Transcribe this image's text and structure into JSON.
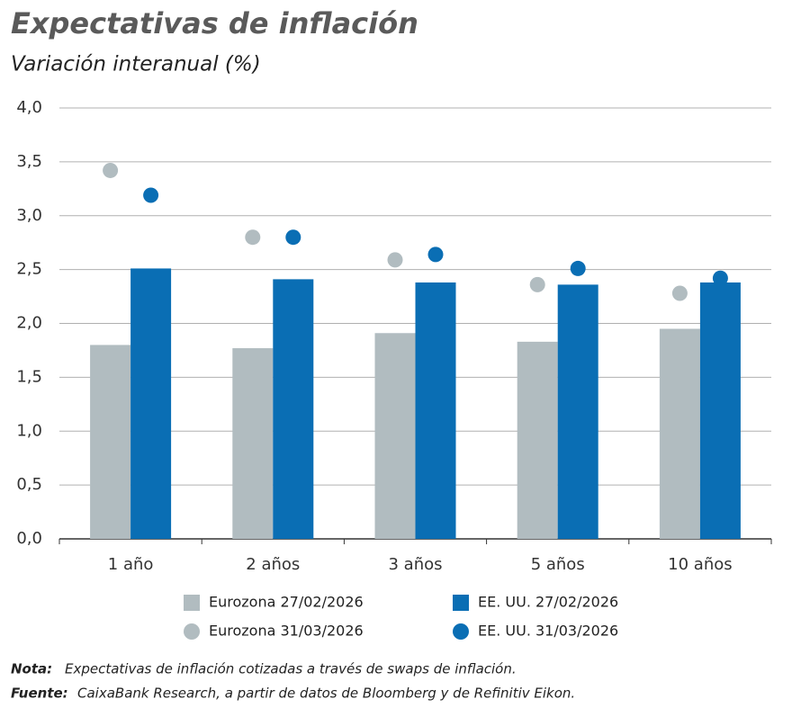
{
  "chart_data": {
    "type": "bar",
    "title": "Expectativas de inflación",
    "subtitle": "Variación interanual (%)",
    "categories": [
      "1 año",
      "2 años",
      "3 años",
      "5 años",
      "10 años"
    ],
    "series": [
      {
        "name": "Eurozona 27/02/2026",
        "type": "bar",
        "color": "#b1bcc0",
        "values": [
          1.8,
          1.77,
          1.91,
          1.83,
          1.95
        ]
      },
      {
        "name": "EE. UU. 27/02/2026",
        "type": "bar",
        "color": "#0a6eb4",
        "values": [
          2.51,
          2.41,
          2.38,
          2.36,
          2.38
        ]
      },
      {
        "name": "Eurozona 31/03/2026",
        "type": "scatter",
        "color": "#b1bcc0",
        "values": [
          3.42,
          2.8,
          2.59,
          2.36,
          2.28
        ]
      },
      {
        "name": "EE. UU. 31/03/2026",
        "type": "scatter",
        "color": "#0a6eb4",
        "values": [
          3.19,
          2.8,
          2.64,
          2.51,
          2.42
        ]
      }
    ],
    "ylim": [
      0,
      4
    ],
    "yticks": [
      {
        "value": 0,
        "label": "0,0"
      },
      {
        "value": 0.5,
        "label": "0,5"
      },
      {
        "value": 1,
        "label": "1,0"
      },
      {
        "value": 1.5,
        "label": "1,5"
      },
      {
        "value": 2,
        "label": "2,0"
      },
      {
        "value": 2.5,
        "label": "2,5"
      },
      {
        "value": 3,
        "label": "3,0"
      },
      {
        "value": 3.5,
        "label": "3,5"
      },
      {
        "value": 4,
        "label": "4,0"
      }
    ],
    "grid": true,
    "note_label": "Nota:",
    "note": "Expectativas de inflación cotizadas a través de swaps de inflación.",
    "source_label": "Fuente:",
    "source": "CaixaBank Research, a partir de datos de Bloomberg y de Refinitiv Eikon."
  }
}
